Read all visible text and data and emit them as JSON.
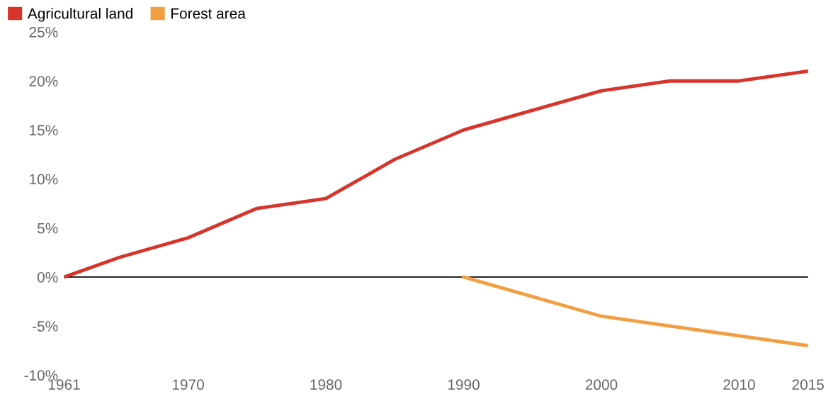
{
  "chart_data": {
    "type": "line",
    "x": [
      1961,
      1965,
      1970,
      1975,
      1980,
      1985,
      1990,
      1995,
      2000,
      2005,
      2010,
      2015
    ],
    "series": [
      {
        "name": "Agricultural land",
        "color": "#d7352b",
        "values": [
          0,
          2,
          4,
          7,
          8,
          12,
          15,
          17,
          19,
          20,
          20,
          21
        ]
      },
      {
        "name": "Forest area",
        "color": "#f29f43",
        "x": [
          1990,
          2000,
          2005,
          2010,
          2015
        ],
        "values": [
          0,
          -4,
          -5,
          -6,
          -7
        ]
      }
    ],
    "xlim": [
      1961,
      2015
    ],
    "xticks": [
      1961,
      1970,
      1980,
      1990,
      2000,
      2010,
      2015
    ],
    "ylim": [
      -10,
      25
    ],
    "yticks": [
      {
        "value": -10,
        "label": "-10%"
      },
      {
        "value": -5,
        "label": "-5%"
      },
      {
        "value": 0,
        "label": "0%"
      },
      {
        "value": 5,
        "label": "5%"
      },
      {
        "value": 10,
        "label": "10%"
      },
      {
        "value": 15,
        "label": "15%"
      },
      {
        "value": 20,
        "label": "20%"
      },
      {
        "value": 25,
        "label": "25%"
      }
    ],
    "ref_lines": [
      {
        "axis": "y",
        "value": 0,
        "color": "#000000"
      }
    ],
    "grid": false,
    "legend": "top left",
    "marker": "none",
    "line_style": "solid"
  }
}
